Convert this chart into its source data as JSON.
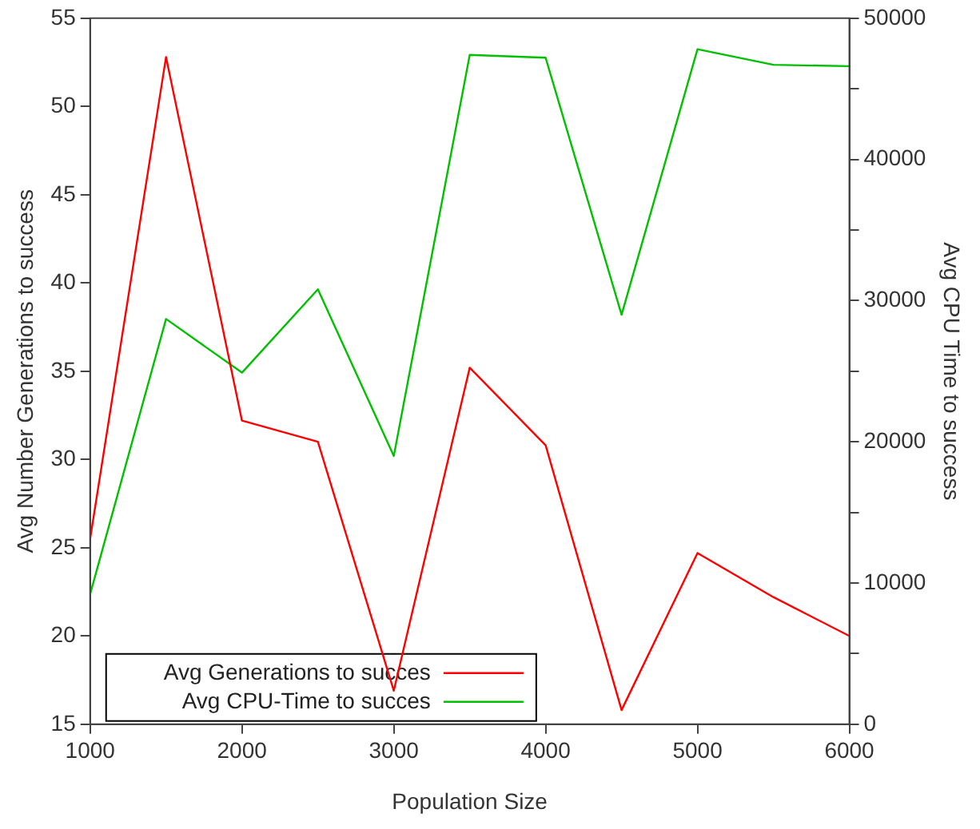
{
  "chart_data": {
    "type": "line",
    "xlabel": "Population Size",
    "ylabel": "Avg Number Generations to success",
    "y2label": "Avg CPU Time to success",
    "x": [
      1000,
      1500,
      2000,
      2500,
      3000,
      3500,
      4000,
      4500,
      5000,
      5500,
      6000
    ],
    "series": [
      {
        "name": "Avg Generations to succes",
        "color": "#ff0000",
        "values": [
          25.5,
          52.8,
          32.2,
          31.0,
          16.9,
          35.2,
          30.8,
          15.8,
          24.7,
          22.2,
          20.0
        ]
      },
      {
        "name": "Avg CPU-Time to succes",
        "color": "#00c000",
        "axis": "y2",
        "values": [
          9200,
          28700,
          24900,
          30800,
          19000,
          47400,
          47200,
          29000,
          47800,
          46700,
          46600
        ]
      }
    ],
    "xlim": [
      1000,
      6000
    ],
    "xticks": [
      1000,
      2000,
      3000,
      4000,
      5000,
      6000
    ],
    "ylim": [
      15,
      55
    ],
    "yticks": [
      15,
      20,
      25,
      30,
      35,
      40,
      45,
      50,
      55
    ],
    "y2lim": [
      0,
      50000
    ],
    "y2ticks": [
      0,
      {
        "value": 5000,
        "label": null
      },
      10000,
      {
        "value": 15000,
        "label": null
      },
      20000,
      {
        "value": 25000,
        "label": null
      },
      30000,
      {
        "value": 35000,
        "label": null
      },
      40000,
      {
        "value": 45000,
        "label": null
      },
      50000
    ],
    "grid": false,
    "legend": "bottom left",
    "marker": "none",
    "line_style": "solid"
  }
}
